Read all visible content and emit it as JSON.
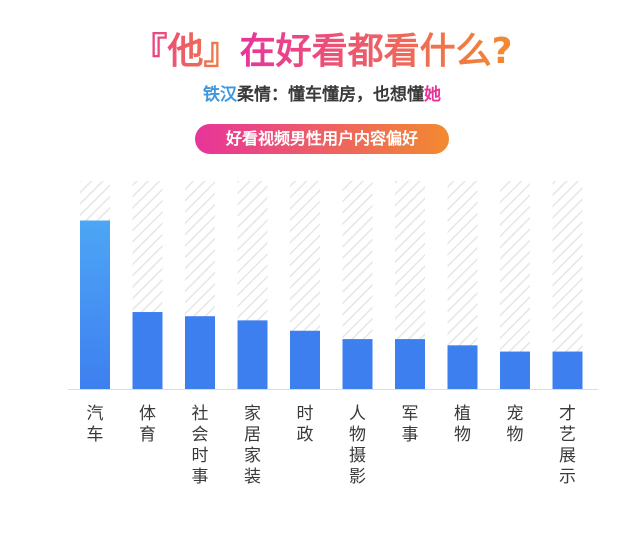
{
  "header": {
    "title_parts": [
      {
        "text": "『他』",
        "color": "#e8349a"
      },
      {
        "text": "在好看都看什么?",
        "color": "#e8349a"
      }
    ],
    "subtitle_parts": [
      {
        "text": "铁汉",
        "color": "#3f97dd"
      },
      {
        "text": "柔情：懂车懂房，也想懂",
        "color": "#3a3a3a"
      },
      {
        "text": "她",
        "color": "#e8349a"
      }
    ],
    "pill_label": "好看视频男性用户内容偏好"
  },
  "colors": {
    "title_gradient_start": "#e8349a",
    "title_gradient_end": "#f28a30",
    "pill_gradient_start": "#e8349a",
    "pill_gradient_end": "#f28a30",
    "bar_top_blue": "#4da6f5",
    "bar_blue": "#3e7ff0",
    "track_stripe": "#e6e6e6"
  },
  "chart_data": {
    "type": "bar",
    "title": "好看视频男性用户内容偏好",
    "xlabel": "",
    "ylabel": "",
    "categories": [
      "汽车",
      "体育",
      "社会时事",
      "家居家装",
      "时政",
      "人物摄影",
      "军事",
      "植物",
      "宠物",
      "才艺展示"
    ],
    "values": [
      81,
      37,
      35,
      33,
      28,
      24,
      24,
      21,
      18,
      18
    ],
    "ylim": [
      0,
      100
    ],
    "grid": false,
    "legend": "none"
  }
}
